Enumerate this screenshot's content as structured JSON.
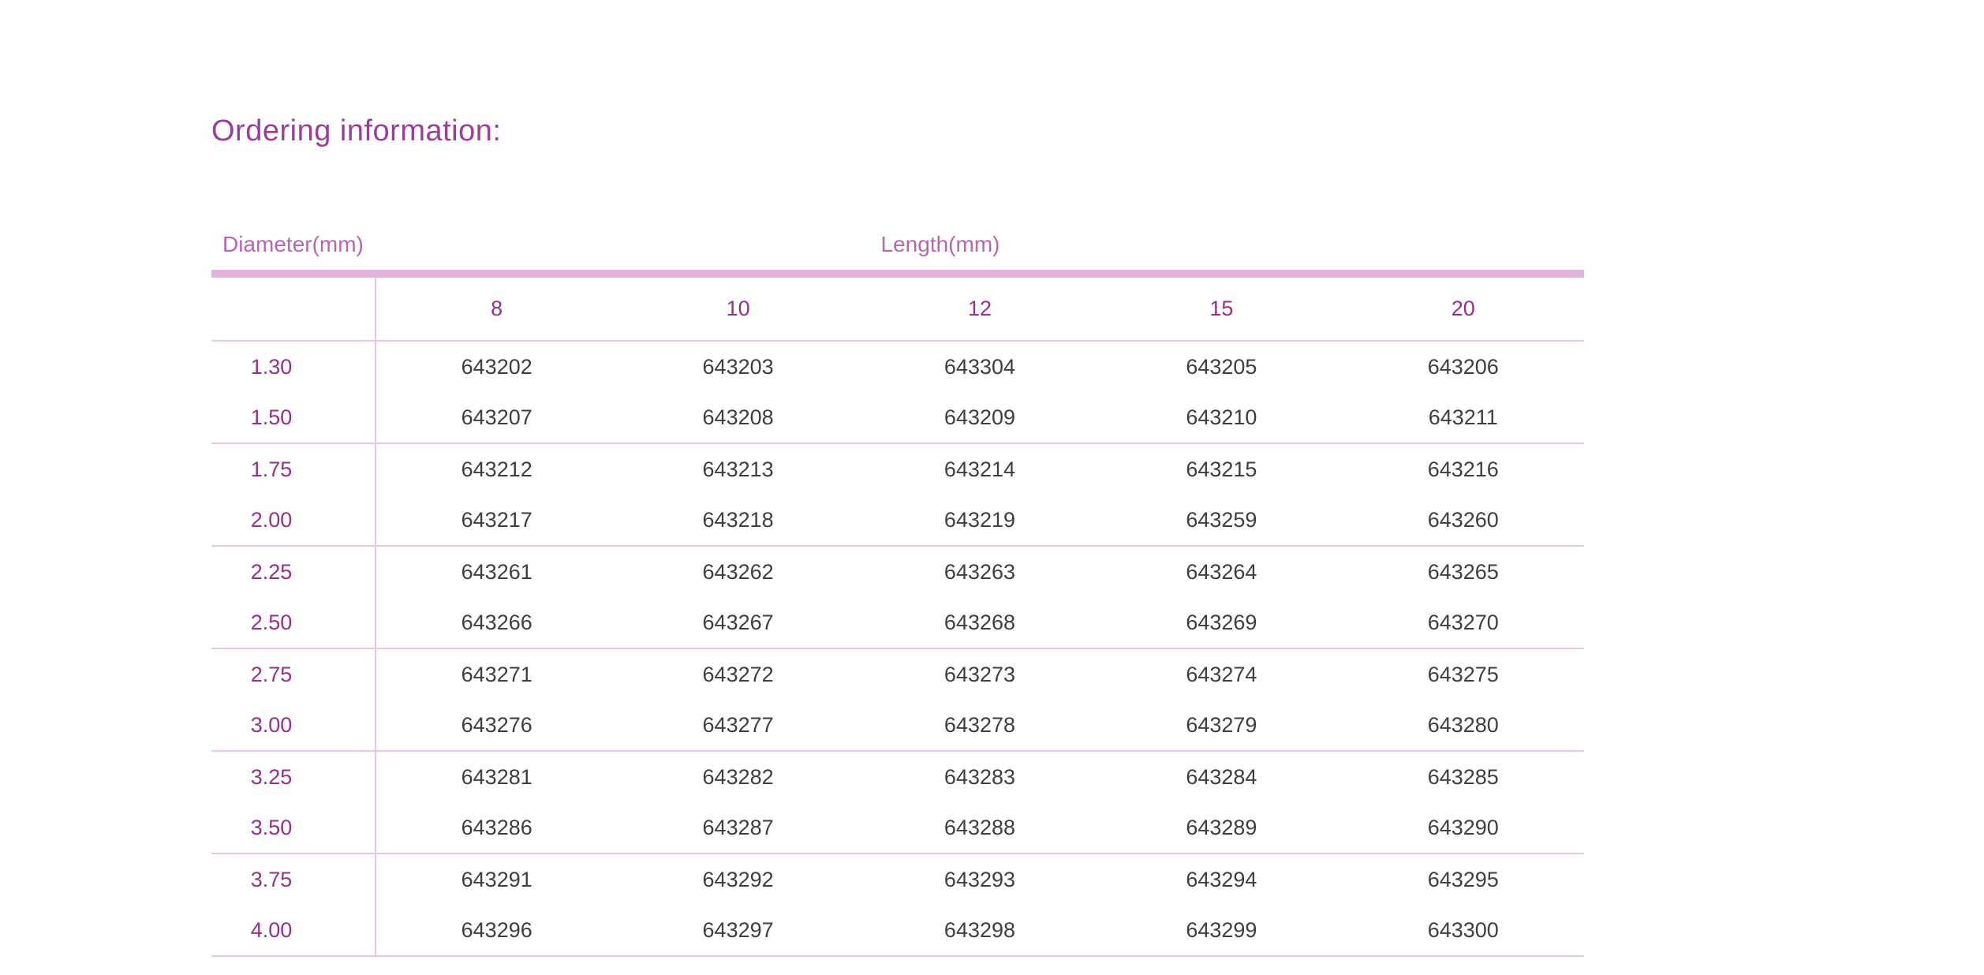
{
  "page": {
    "title": "Ordering information:"
  },
  "table": {
    "diameter_header": "Diameter(mm)",
    "length_header": "Length(mm)",
    "length_columns": [
      "8",
      "10",
      "12",
      "15",
      "20"
    ],
    "rows": [
      {
        "diameter": "1.30",
        "codes": [
          "643202",
          "643203",
          "643304",
          "643205",
          "643206"
        ]
      },
      {
        "diameter": "1.50",
        "codes": [
          "643207",
          "643208",
          "643209",
          "643210",
          "643211"
        ]
      },
      {
        "diameter": "1.75",
        "codes": [
          "643212",
          "643213",
          "643214",
          "643215",
          "643216"
        ]
      },
      {
        "diameter": "2.00",
        "codes": [
          "643217",
          "643218",
          "643219",
          "643259",
          "643260"
        ]
      },
      {
        "diameter": "2.25",
        "codes": [
          "643261",
          "643262",
          "643263",
          "643264",
          "643265"
        ]
      },
      {
        "diameter": "2.50",
        "codes": [
          "643266",
          "643267",
          "643268",
          "643269",
          "643270"
        ]
      },
      {
        "diameter": "2.75",
        "codes": [
          "643271",
          "643272",
          "643273",
          "643274",
          "643275"
        ]
      },
      {
        "diameter": "3.00",
        "codes": [
          "643276",
          "643277",
          "643278",
          "643279",
          "643280"
        ]
      },
      {
        "diameter": "3.25",
        "codes": [
          "643281",
          "643282",
          "643283",
          "643284",
          "643285"
        ]
      },
      {
        "diameter": "3.50",
        "codes": [
          "643286",
          "643287",
          "643288",
          "643289",
          "643290"
        ]
      },
      {
        "diameter": "3.75",
        "codes": [
          "643291",
          "643292",
          "643293",
          "643294",
          "643295"
        ]
      },
      {
        "diameter": "4.00",
        "codes": [
          "643296",
          "643297",
          "643298",
          "643299",
          "643300"
        ]
      }
    ]
  },
  "colors": {
    "title": "#9c3e99",
    "header_labels": "#b468af",
    "accent_numbers": "#942f90",
    "codes": "#3e3e3e",
    "thick_rule": "#dfb3dc",
    "thin_rule": "#e9c6e5"
  }
}
